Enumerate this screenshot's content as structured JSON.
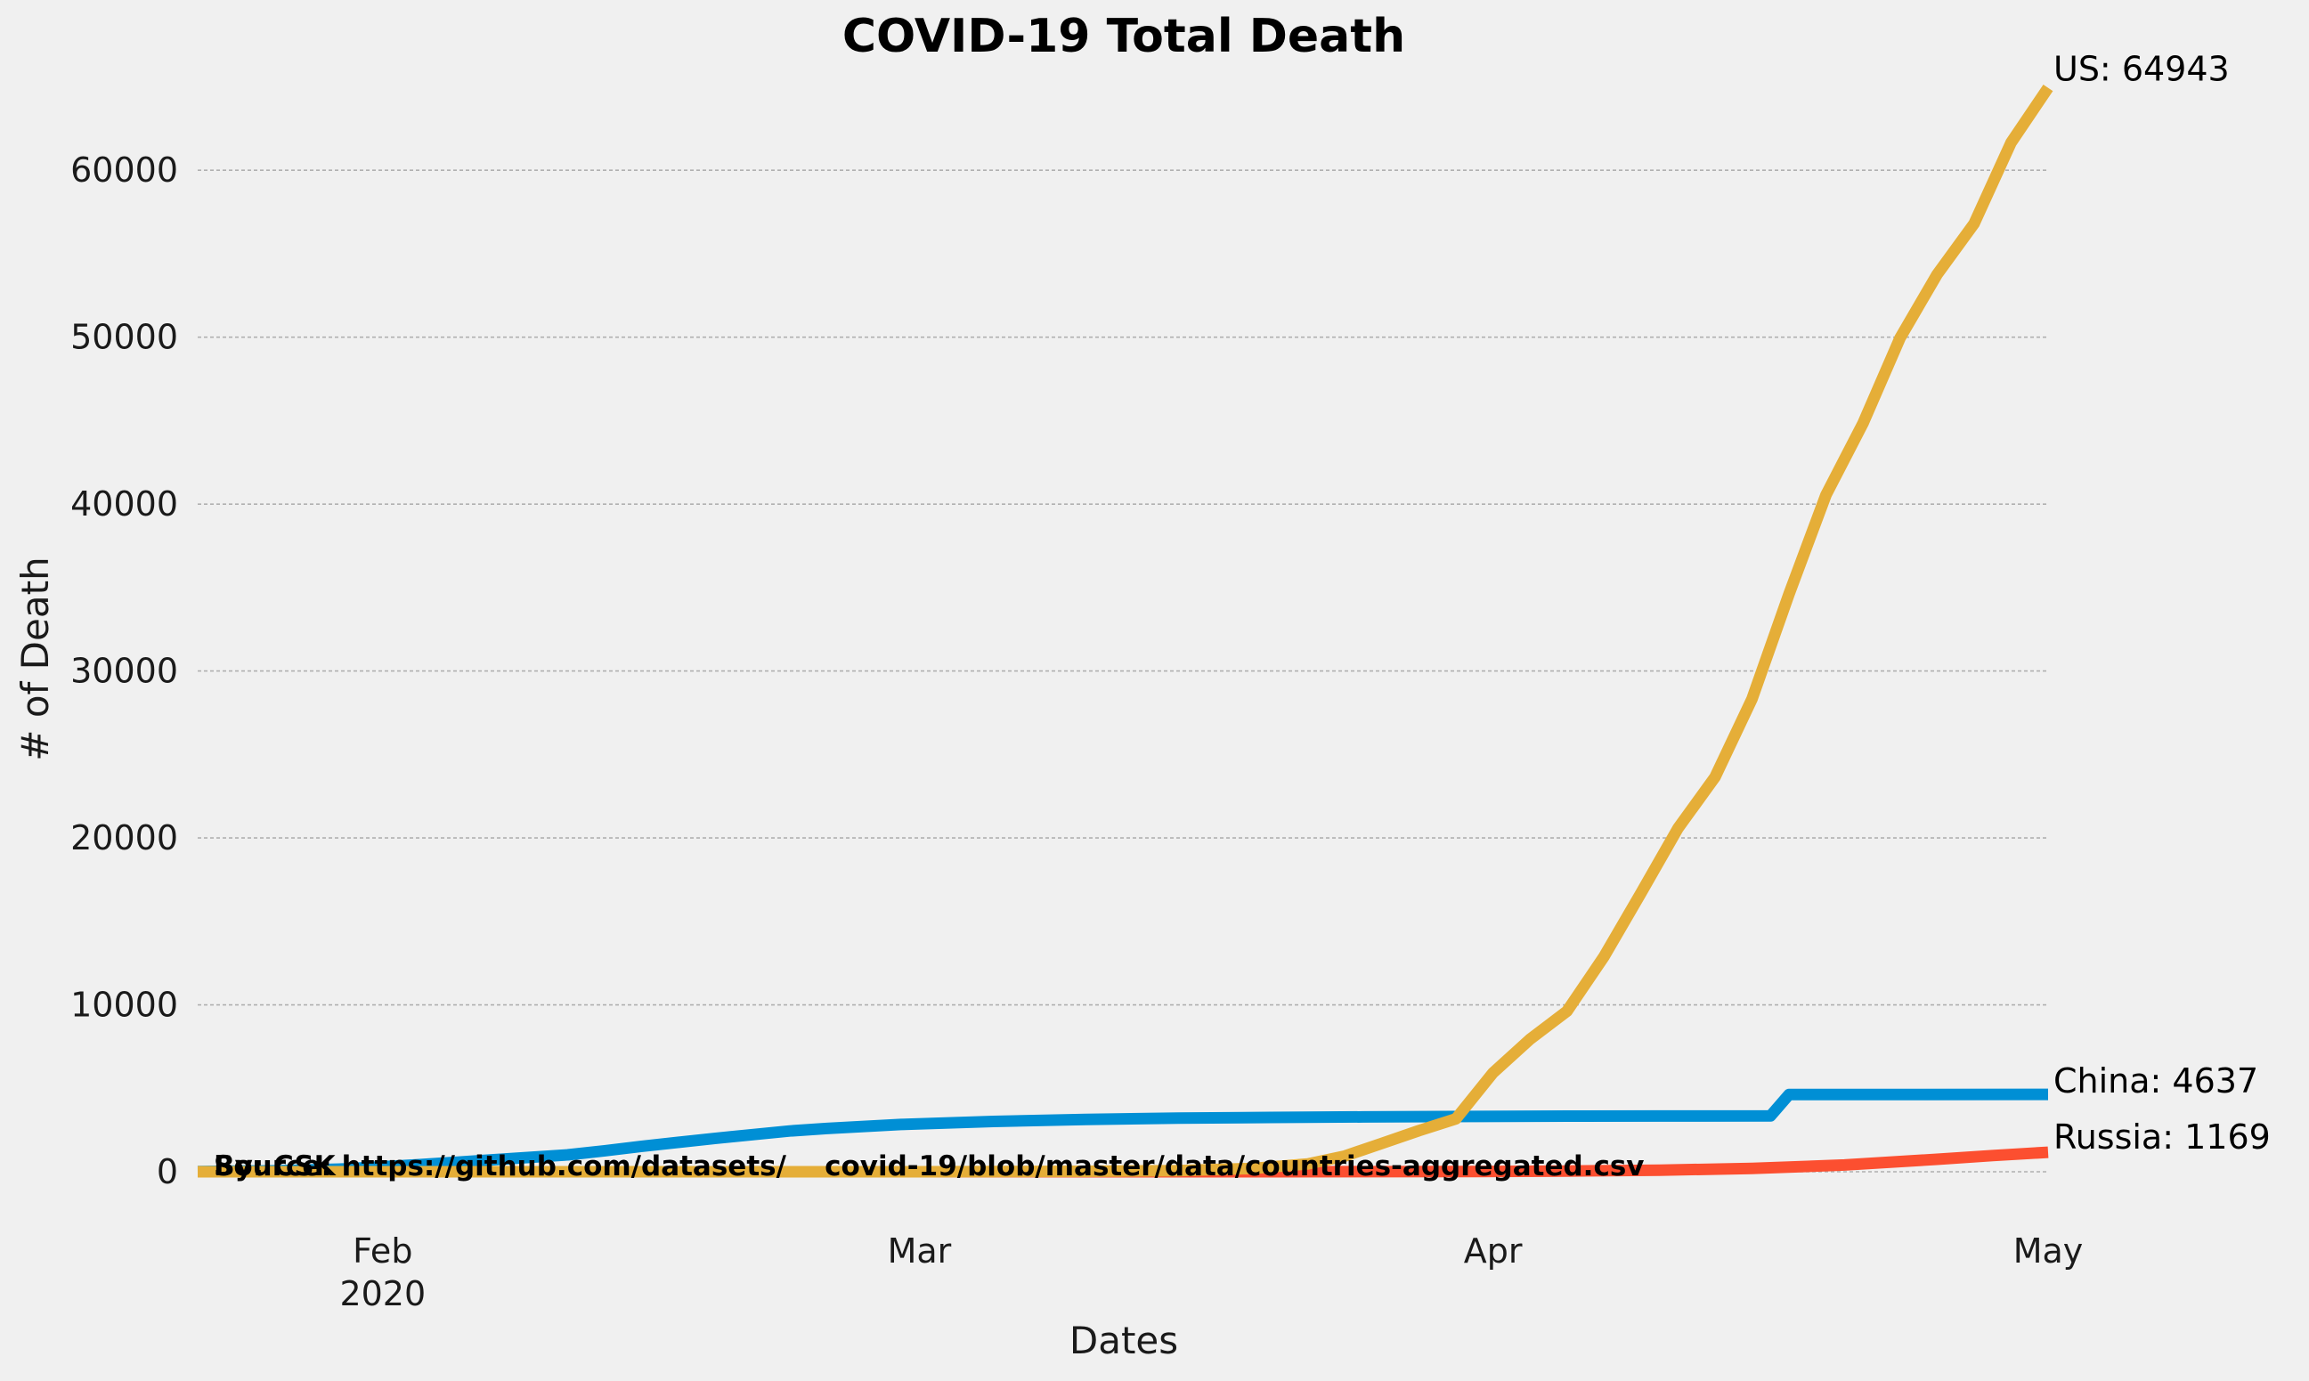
{
  "chart_data": {
    "type": "line",
    "title": "COVID-19 Total Death",
    "xlabel": "Dates",
    "ylabel": "# of Death",
    "xlim": [
      "2020-01-22",
      "2020-05-01"
    ],
    "ylim": [
      0,
      67000
    ],
    "grid": "horizontal dashed",
    "x_ticks": [
      {
        "date": "2020-02-01",
        "label": "Feb",
        "sublabel": "2020"
      },
      {
        "date": "2020-03-01",
        "label": "Mar",
        "sublabel": ""
      },
      {
        "date": "2020-04-01",
        "label": "Apr",
        "sublabel": ""
      },
      {
        "date": "2020-05-01",
        "label": "May",
        "sublabel": ""
      }
    ],
    "y_ticks": [
      0,
      10000,
      20000,
      30000,
      40000,
      50000,
      60000
    ],
    "series": [
      {
        "name": "China",
        "color": "#008fd5",
        "end_label": "China: 4637",
        "points": [
          [
            "2020-01-22",
            17
          ],
          [
            "2020-01-26",
            56
          ],
          [
            "2020-01-30",
            170
          ],
          [
            "2020-02-03",
            425
          ],
          [
            "2020-02-07",
            722
          ],
          [
            "2020-02-11",
            1016
          ],
          [
            "2020-02-13",
            1259
          ],
          [
            "2020-02-15",
            1523
          ],
          [
            "2020-02-19",
            2004
          ],
          [
            "2020-02-23",
            2443
          ],
          [
            "2020-02-25",
            2593
          ],
          [
            "2020-02-29",
            2835
          ],
          [
            "2020-03-05",
            3015
          ],
          [
            "2020-03-10",
            3136
          ],
          [
            "2020-03-15",
            3213
          ],
          [
            "2020-03-20",
            3253
          ],
          [
            "2020-03-25",
            3287
          ],
          [
            "2020-03-31",
            3310
          ],
          [
            "2020-04-05",
            3333
          ],
          [
            "2020-04-10",
            3340
          ],
          [
            "2020-04-16",
            3342
          ],
          [
            "2020-04-17",
            4632
          ],
          [
            "2020-04-24",
            4632
          ],
          [
            "2020-05-01",
            4637
          ]
        ]
      },
      {
        "name": "Russia",
        "color": "#fc4f30",
        "end_label": "Russia: 1169",
        "points": [
          [
            "2020-01-22",
            0
          ],
          [
            "2020-03-20",
            1
          ],
          [
            "2020-03-25",
            3
          ],
          [
            "2020-03-31",
            17
          ],
          [
            "2020-04-05",
            45
          ],
          [
            "2020-04-10",
            94
          ],
          [
            "2020-04-15",
            198
          ],
          [
            "2020-04-20",
            405
          ],
          [
            "2020-04-25",
            747
          ],
          [
            "2020-04-28",
            972
          ],
          [
            "2020-05-01",
            1169
          ]
        ]
      },
      {
        "name": "US",
        "color": "#e5ae38",
        "end_label": "US: 64943",
        "points": [
          [
            "2020-01-22",
            0
          ],
          [
            "2020-03-01",
            1
          ],
          [
            "2020-03-10",
            28
          ],
          [
            "2020-03-15",
            63
          ],
          [
            "2020-03-19",
            200
          ],
          [
            "2020-03-22",
            471
          ],
          [
            "2020-03-24",
            942
          ],
          [
            "2020-03-26",
            1704
          ],
          [
            "2020-03-28",
            2467
          ],
          [
            "2020-03-30",
            3170
          ],
          [
            "2020-04-01",
            5926
          ],
          [
            "2020-04-03",
            7938
          ],
          [
            "2020-04-05",
            9619
          ],
          [
            "2020-04-07",
            12895
          ],
          [
            "2020-04-09",
            16697
          ],
          [
            "2020-04-11",
            20580
          ],
          [
            "2020-04-13",
            23649
          ],
          [
            "2020-04-15",
            28326
          ],
          [
            "2020-04-17",
            34617
          ],
          [
            "2020-04-19",
            40553
          ],
          [
            "2020-04-21",
            44845
          ],
          [
            "2020-04-23",
            49954
          ],
          [
            "2020-04-25",
            53755
          ],
          [
            "2020-04-27",
            56803
          ],
          [
            "2020-04-29",
            61656
          ],
          [
            "2020-05-01",
            64943
          ]
        ]
      }
    ],
    "overlay_texts": [
      "By: CSK",
      "Source: https://github.com/datasets/    covid-19/blob/master/data/countries-aggregated.csv"
    ]
  }
}
